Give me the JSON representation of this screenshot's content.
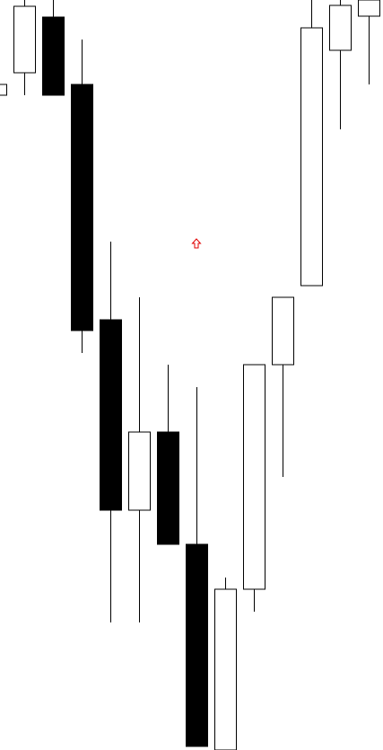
{
  "chart_data": {
    "type": "candlestick",
    "categories": [
      null,
      null,
      null,
      null,
      null,
      null,
      null,
      null,
      null,
      null,
      null,
      null,
      null,
      null
    ],
    "open": [
      729,
      754,
      816,
      741,
      479,
      267,
      354,
      229,
      0,
      179,
      429,
      517,
      779,
      817
    ],
    "high": [
      741,
      835,
      835,
      791,
      566,
      504,
      429,
      404,
      192,
      429,
      504,
      835,
      835,
      835
    ],
    "low": [
      729,
      729,
      729,
      442,
      142,
      142,
      229,
      4,
      0,
      154,
      304,
      517,
      691,
      741
    ],
    "close": [
      741,
      828,
      729,
      467,
      267,
      354,
      229,
      4,
      179,
      429,
      504,
      804,
      829,
      835
    ],
    "up_color": "#ffffff",
    "down_color": "#000000",
    "edge_color": "#000000",
    "ylim": [
      0,
      835
    ]
  }
}
